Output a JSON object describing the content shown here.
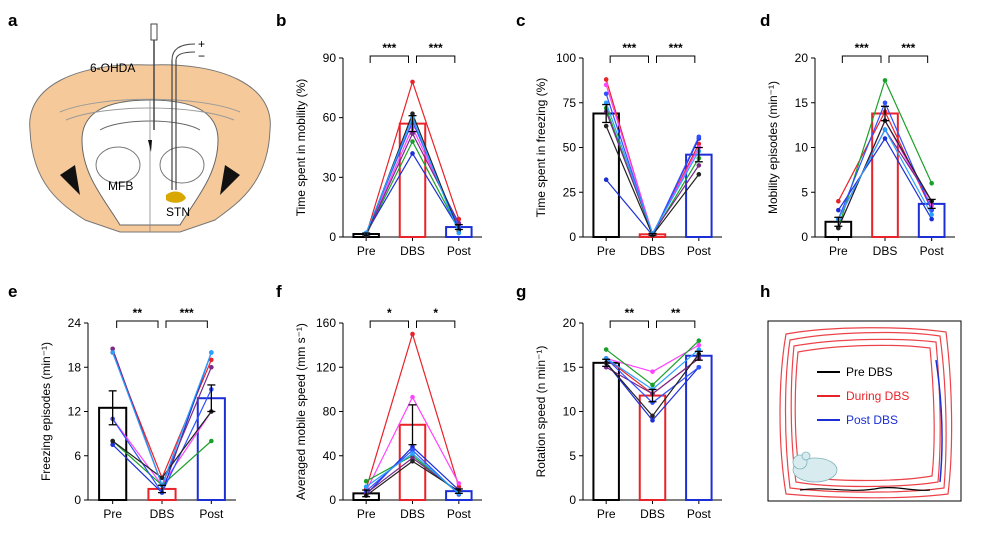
{
  "panel_a": {
    "letter": "a",
    "labels": {
      "ohda": "6-OHDA",
      "plus": "+",
      "minus": "−",
      "mfb": "MFB",
      "stn": "STN"
    }
  },
  "panel_h": {
    "letter": "h",
    "legend": [
      {
        "text": "Pre DBS",
        "color": "#000000"
      },
      {
        "text": "During DBS",
        "color": "#e8232a"
      },
      {
        "text": "Post DBS",
        "color": "#1c2fd6"
      }
    ]
  },
  "colors": {
    "pre": "#000000",
    "dbs": "#e8232a",
    "post": "#1c2fd6",
    "animals": [
      "#e8232a",
      "#ff44ff",
      "#1aa02a",
      "#1c2fd6",
      "#7a2a8a",
      "#3050ff",
      "#222222",
      "#2aa0ff"
    ]
  },
  "chart_data": [
    {
      "letter": "b",
      "type": "bar",
      "categories": [
        "Pre",
        "DBS",
        "Post"
      ],
      "ylabel": "Time spent in mobility (%)",
      "ylim": [
        0,
        90
      ],
      "yticks": [
        0,
        30,
        60,
        90
      ],
      "means": [
        1.5,
        57,
        5
      ],
      "errors": [
        0.5,
        4,
        1.2
      ],
      "individual": [
        [
          1,
          78,
          9
        ],
        [
          1,
          55,
          6
        ],
        [
          1,
          48,
          4
        ],
        [
          2,
          42,
          4
        ],
        [
          1,
          52,
          7
        ],
        [
          2,
          58,
          5
        ],
        [
          1,
          62,
          3
        ],
        [
          2,
          60,
          2
        ]
      ],
      "significance": [
        {
          "pair": [
            0,
            1
          ],
          "label": "***"
        },
        {
          "pair": [
            1,
            2
          ],
          "label": "***"
        }
      ]
    },
    {
      "letter": "c",
      "type": "bar",
      "categories": [
        "Pre",
        "DBS",
        "Post"
      ],
      "ylabel": "Time spent in freezing (%)",
      "ylim": [
        0,
        100
      ],
      "yticks": [
        0,
        25,
        50,
        75,
        100
      ],
      "means": [
        69,
        1.5,
        46
      ],
      "errors": [
        5,
        0.5,
        4
      ],
      "individual": [
        [
          88,
          1,
          52
        ],
        [
          85,
          2,
          50
        ],
        [
          72,
          1,
          44
        ],
        [
          32,
          1,
          55
        ],
        [
          70,
          2,
          40
        ],
        [
          80,
          1,
          56
        ],
        [
          62,
          1,
          35
        ],
        [
          75,
          2,
          48
        ]
      ],
      "significance": [
        {
          "pair": [
            0,
            1
          ],
          "label": "***"
        },
        {
          "pair": [
            1,
            2
          ],
          "label": "***"
        }
      ]
    },
    {
      "letter": "d",
      "type": "bar",
      "categories": [
        "Pre",
        "DBS",
        "Post"
      ],
      "ylabel": "Mobility episodes (min⁻¹)",
      "ylim": [
        0,
        20
      ],
      "yticks": [
        0,
        5,
        10,
        15,
        20
      ],
      "means": [
        1.7,
        13.8,
        3.7
      ],
      "errors": [
        0.5,
        0.8,
        0.5
      ],
      "individual": [
        [
          4,
          14,
          3
        ],
        [
          1,
          13,
          3.5
        ],
        [
          1,
          17.5,
          6
        ],
        [
          3,
          11,
          2
        ],
        [
          2,
          12,
          4
        ],
        [
          2,
          15,
          3
        ],
        [
          1,
          13,
          4
        ],
        [
          2,
          12,
          2.5
        ]
      ],
      "significance": [
        {
          "pair": [
            0,
            1
          ],
          "label": "***"
        },
        {
          "pair": [
            1,
            2
          ],
          "label": "***"
        }
      ]
    },
    {
      "letter": "e",
      "type": "bar",
      "categories": [
        "Pre",
        "DBS",
        "Post"
      ],
      "ylabel": "Freezing episodes (min⁻¹)",
      "ylim": [
        0,
        24
      ],
      "yticks": [
        0,
        6,
        12,
        18,
        24
      ],
      "means": [
        12.5,
        1.5,
        13.8
      ],
      "errors": [
        2.3,
        0.5,
        1.8
      ],
      "individual": [
        [
          20,
          3,
          19
        ],
        [
          11,
          2,
          12
        ],
        [
          8,
          2,
          8
        ],
        [
          7.5,
          1,
          20
        ],
        [
          20.5,
          2,
          18
        ],
        [
          11,
          1,
          15
        ],
        [
          8,
          3,
          12
        ],
        [
          20,
          2,
          20
        ]
      ],
      "significance": [
        {
          "pair": [
            0,
            1
          ],
          "label": "**"
        },
        {
          "pair": [
            1,
            2
          ],
          "label": "***"
        }
      ]
    },
    {
      "letter": "f",
      "type": "bar",
      "categories": [
        "Pre",
        "DBS",
        "Post"
      ],
      "ylabel": "Averaged mobile speed (mm s⁻¹)",
      "ylim": [
        0,
        160
      ],
      "yticks": [
        0,
        40,
        80,
        120,
        160
      ],
      "means": [
        6,
        68,
        8
      ],
      "errors": [
        3,
        18,
        2
      ],
      "individual": [
        [
          10,
          150,
          12
        ],
        [
          8,
          93,
          15
        ],
        [
          17,
          40,
          6
        ],
        [
          5,
          48,
          9
        ],
        [
          6,
          38,
          7
        ],
        [
          8,
          45,
          5
        ],
        [
          4,
          35,
          8
        ],
        [
          12,
          42,
          6
        ]
      ],
      "significance": [
        {
          "pair": [
            0,
            1
          ],
          "label": "*"
        },
        {
          "pair": [
            1,
            2
          ],
          "label": "*"
        }
      ]
    },
    {
      "letter": "g",
      "type": "bar",
      "categories": [
        "Pre",
        "DBS",
        "Post"
      ],
      "ylabel": "Rotation speed (n min⁻¹)",
      "ylim": [
        0,
        20
      ],
      "yticks": [
        0,
        5,
        10,
        15,
        20
      ],
      "means": [
        15.5,
        11.8,
        16.3
      ],
      "errors": [
        0.4,
        0.7,
        0.5
      ],
      "individual": [
        [
          16,
          12,
          16
        ],
        [
          16,
          14.5,
          17.5
        ],
        [
          17,
          13,
          18
        ],
        [
          15.5,
          9,
          15
        ],
        [
          15,
          12,
          16
        ],
        [
          16,
          11,
          15
        ],
        [
          15.5,
          9.5,
          16.5
        ],
        [
          16,
          12.5,
          17
        ]
      ],
      "significance": [
        {
          "pair": [
            0,
            1
          ],
          "label": "**"
        },
        {
          "pair": [
            1,
            2
          ],
          "label": "**"
        }
      ]
    }
  ]
}
